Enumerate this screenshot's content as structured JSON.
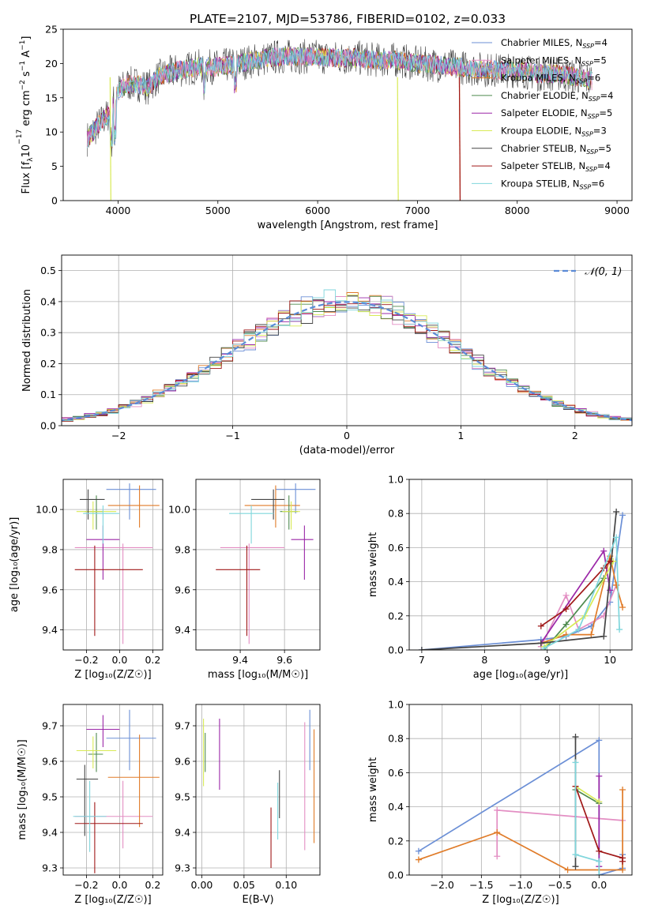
{
  "figure": {
    "title": "PLATE=2107, MJD=53786, FIBERID=0102, z=0.033"
  },
  "colors": {
    "Chabrier MILES": "#6b8fd6",
    "Salpeter MILES": "#e38ec3",
    "Kroupa MILES": "#e07b28",
    "Chabrier ELODIE": "#4e8a4e",
    "Salpeter ELODIE": "#9b27a8",
    "Kroupa ELODIE": "#d8ea55",
    "Chabrier STELIB": "#444444",
    "Salpeter STELIB": "#a01818",
    "Kroupa STELIB": "#7fd6dc"
  },
  "chart_data": [
    {
      "id": "spectrum",
      "type": "line",
      "xlabel": "wavelength [Angstrom, rest frame]",
      "ylabel_main": "Flux [f",
      "ylabel_sub": "λ",
      "ylabel_rest": "10",
      "ylabel_exp": "−17",
      "ylabel_tail": " erg cm",
      "ylabel_exp2": "−2",
      "ylabel_s": " s",
      "ylabel_exp3": "−1",
      "ylabel_A": " A",
      "ylabel_exp4": "−1",
      "ylabel_end": "]",
      "xlim": [
        3450,
        9150
      ],
      "ylim": [
        0,
        25
      ],
      "xticks": [
        "4000",
        "5000",
        "6000",
        "7000",
        "8000",
        "9000"
      ],
      "yticks": [
        "0",
        "5",
        "10",
        "15",
        "20",
        "25"
      ],
      "legend_placement": "top-right",
      "legend": [
        {
          "name": "Chabrier MILES",
          "n": "4"
        },
        {
          "name": "Salpeter MILES",
          "n": "5"
        },
        {
          "name": "Kroupa MILES",
          "n": "6"
        },
        {
          "name": "Chabrier ELODIE",
          "n": "4"
        },
        {
          "name": "Salpeter ELODIE",
          "n": "5"
        },
        {
          "name": "Kroupa ELODIE",
          "n": "3"
        },
        {
          "name": "Chabrier STELIB",
          "n": "5"
        },
        {
          "name": "Salpeter STELIB",
          "n": "4"
        },
        {
          "name": "Kroupa STELIB",
          "n": "6"
        }
      ],
      "legend_nlabel": "N",
      "legend_nsub": "SSP",
      "legend_eq": "=",
      "continuum": {
        "x": [
          3690,
          3800,
          3900,
          4000,
          4100,
          4200,
          4300,
          4400,
          4600,
          4800,
          5000,
          5200,
          5400,
          5600,
          5800,
          6000,
          6200,
          6400,
          6600,
          6800,
          7000,
          7200,
          7400,
          7600,
          7800,
          8000,
          8200,
          8400,
          8600,
          8750
        ],
        "y": [
          9,
          11,
          12.5,
          16,
          17,
          17,
          16.5,
          18,
          19,
          19.5,
          19.5,
          20,
          20.5,
          21,
          21,
          21,
          20.8,
          20.8,
          20.5,
          20.5,
          20,
          19.8,
          19.5,
          19.2,
          19,
          19,
          18.5,
          18.5,
          18,
          17.5
        ]
      },
      "dips": [
        {
          "series": "Kroupa ELODIE",
          "x": 3920,
          "y": 0
        },
        {
          "series": "Kroupa ELODIE",
          "x": 6800,
          "y": 0
        },
        {
          "series": "Kroupa MILES",
          "x": 7420,
          "y": 0
        },
        {
          "series": "Salpeter STELIB",
          "x": 7420,
          "y": 0
        }
      ]
    },
    {
      "id": "residuals",
      "type": "histogram",
      "xlabel": "(data-model)/error",
      "ylabel": "Normed distribution",
      "xlim": [
        -2.5,
        2.5
      ],
      "ylim": [
        0,
        0.55
      ],
      "xticks": [
        "−2",
        "−1",
        "0",
        "1",
        "2"
      ],
      "yticks": [
        "0.0",
        "0.1",
        "0.2",
        "0.3",
        "0.4",
        "0.5"
      ],
      "grid": true,
      "legend_placement": "top-right",
      "gaussian_label": "𝒩(0, 1)",
      "bin_width": 0.1
    },
    {
      "id": "age_vs_Z",
      "type": "errorbar",
      "xlabel": "Z [log₁₀(Z/Z☉)]",
      "ylabel": "age  [log₁₀(age/yr)]",
      "xlim": [
        -0.34,
        0.26
      ],
      "ylim": [
        9.3,
        10.15
      ],
      "xticks": [
        "−0.2",
        "0.0",
        "0.2"
      ],
      "yticks": [
        "9.4",
        "9.6",
        "9.8",
        "10.0"
      ],
      "grid": true,
      "points": [
        {
          "series": "Chabrier MILES",
          "x": 0.06,
          "y": 10.1,
          "xerr": [
            0.14,
            0.16
          ],
          "yerr": [
            0.15,
            0.03
          ]
        },
        {
          "series": "Salpeter MILES",
          "x": 0.02,
          "y": 9.81,
          "xerr": [
            0.29,
            0.18
          ],
          "yerr": [
            0.48,
            0.02
          ]
        },
        {
          "series": "Kroupa MILES",
          "x": 0.12,
          "y": 10.02,
          "xerr": [
            0.19,
            0.12
          ],
          "yerr": [
            0.11,
            0.1
          ]
        },
        {
          "series": "Chabrier ELODIE",
          "x": -0.14,
          "y": 9.99,
          "xerr": [
            0.07,
            0.04
          ],
          "yerr": [
            0.09,
            0.08
          ]
        },
        {
          "series": "Salpeter ELODIE",
          "x": -0.1,
          "y": 9.85,
          "xerr": [
            0.1,
            0.1
          ],
          "yerr": [
            0.2,
            0.07
          ]
        },
        {
          "series": "Kroupa ELODIE",
          "x": -0.16,
          "y": 9.99,
          "xerr": [
            0.1,
            0.14
          ],
          "yerr": [
            0.09,
            0.05
          ]
        },
        {
          "series": "Chabrier STELIB",
          "x": -0.19,
          "y": 10.05,
          "xerr": [
            0.05,
            0.1
          ],
          "yerr": [
            0.1,
            0.05
          ]
        },
        {
          "series": "Salpeter STELIB",
          "x": -0.15,
          "y": 9.7,
          "xerr": [
            0.12,
            0.29
          ],
          "yerr": [
            0.33,
            0.12
          ]
        },
        {
          "series": "Kroupa STELIB",
          "x": -0.1,
          "y": 9.98,
          "xerr": [
            0.12,
            0.1
          ],
          "yerr": [
            0.15,
            0.04
          ]
        }
      ]
    },
    {
      "id": "age_vs_mass",
      "type": "errorbar",
      "xlabel": "mass [log₁₀(M/M☉)]",
      "ylabel": "",
      "xlim": [
        9.2,
        9.76
      ],
      "ylim": [
        9.3,
        10.15
      ],
      "xticks": [
        "9.4",
        "9.6"
      ],
      "yticks": [
        "9.4",
        "9.6",
        "9.8",
        "10.0"
      ],
      "grid": true,
      "points": [
        {
          "series": "Chabrier MILES",
          "x": 9.65,
          "y": 10.1,
          "xerr": [
            0.09,
            0.09
          ],
          "yerr": [
            0.12,
            0.03
          ]
        },
        {
          "series": "Salpeter MILES",
          "x": 9.44,
          "y": 9.81,
          "xerr": [
            0.13,
            0.16
          ],
          "yerr": [
            0.48,
            0.02
          ]
        },
        {
          "series": "Kroupa MILES",
          "x": 9.56,
          "y": 10.02,
          "xerr": [
            0.14,
            0.11
          ],
          "yerr": [
            0.11,
            0.1
          ]
        },
        {
          "series": "Chabrier ELODIE",
          "x": 9.62,
          "y": 9.99,
          "xerr": [
            0.04,
            0.04
          ],
          "yerr": [
            0.09,
            0.08
          ]
        },
        {
          "series": "Salpeter ELODIE",
          "x": 9.69,
          "y": 9.85,
          "xerr": [
            0.06,
            0.04
          ],
          "yerr": [
            0.2,
            0.07
          ]
        },
        {
          "series": "Kroupa ELODIE",
          "x": 9.63,
          "y": 9.99,
          "xerr": [
            0.04,
            0.04
          ],
          "yerr": [
            0.09,
            0.05
          ]
        },
        {
          "series": "Chabrier STELIB",
          "x": 9.55,
          "y": 10.05,
          "xerr": [
            0.1,
            0.05
          ],
          "yerr": [
            0.1,
            0.05
          ]
        },
        {
          "series": "Salpeter STELIB",
          "x": 9.43,
          "y": 9.7,
          "xerr": [
            0.14,
            0.06
          ],
          "yerr": [
            0.33,
            0.12
          ]
        },
        {
          "series": "Kroupa STELIB",
          "x": 9.45,
          "y": 9.98,
          "xerr": [
            0.1,
            0.1
          ],
          "yerr": [
            0.15,
            0.04
          ]
        }
      ]
    },
    {
      "id": "mass_vs_Z",
      "type": "errorbar",
      "xlabel": "Z [log₁₀(Z/Z☉)]",
      "ylabel": "mass [log₁₀(M/M☉)]",
      "xlim": [
        -0.34,
        0.26
      ],
      "ylim": [
        9.28,
        9.76
      ],
      "xticks": [
        "−0.2",
        "0.0",
        "0.2"
      ],
      "yticks": [
        "9.3",
        "9.4",
        "9.5",
        "9.6",
        "9.7"
      ],
      "grid": true,
      "points": [
        {
          "series": "Chabrier MILES",
          "x": 0.06,
          "y": 9.665,
          "xerr": [
            0.14,
            0.16
          ],
          "yerr": [
            0.09,
            0.08
          ]
        },
        {
          "series": "Salpeter MILES",
          "x": 0.02,
          "y": 9.445,
          "xerr": [
            0.29,
            0.18
          ],
          "yerr": [
            0.09,
            0.1
          ]
        },
        {
          "series": "Kroupa MILES",
          "x": 0.12,
          "y": 9.555,
          "xerr": [
            0.19,
            0.12
          ],
          "yerr": [
            0.14,
            0.12
          ]
        },
        {
          "series": "Chabrier ELODIE",
          "x": -0.14,
          "y": 9.62,
          "xerr": [
            0.05,
            0.04
          ],
          "yerr": [
            0.05,
            0.06
          ]
        },
        {
          "series": "Salpeter ELODIE",
          "x": -0.1,
          "y": 9.69,
          "xerr": [
            0.1,
            0.1
          ],
          "yerr": [
            0.05,
            0.04
          ]
        },
        {
          "series": "Kroupa ELODIE",
          "x": -0.16,
          "y": 9.63,
          "xerr": [
            0.1,
            0.14
          ],
          "yerr": [
            0.05,
            0.04
          ]
        },
        {
          "series": "Chabrier STELIB",
          "x": -0.21,
          "y": 9.55,
          "xerr": [
            0.05,
            0.08
          ],
          "yerr": [
            0.16,
            0.04
          ]
        },
        {
          "series": "Salpeter STELIB",
          "x": -0.15,
          "y": 9.425,
          "xerr": [
            0.12,
            0.29
          ],
          "yerr": [
            0.14,
            0.06
          ]
        },
        {
          "series": "Kroupa STELIB",
          "x": -0.18,
          "y": 9.445,
          "xerr": [
            0.1,
            0.1
          ],
          "yerr": [
            0.1,
            0.1
          ]
        }
      ]
    },
    {
      "id": "mass_vs_ebv",
      "type": "errorbar",
      "xlabel": "E(B-V)",
      "ylabel": "",
      "xlim": [
        -0.007,
        0.14
      ],
      "ylim": [
        9.28,
        9.76
      ],
      "xticks": [
        "0.00",
        "0.05",
        "0.10"
      ],
      "yticks": [
        "9.3",
        "9.4",
        "9.5",
        "9.6",
        "9.7"
      ],
      "grid": true,
      "points": [
        {
          "series": "Chabrier MILES",
          "x": 0.128,
          "y": 9.665,
          "xerr": [
            0,
            0
          ],
          "yerr": [
            0.09,
            0.08
          ]
        },
        {
          "series": "Salpeter MILES",
          "x": 0.122,
          "y": 9.53,
          "xerr": [
            0,
            0
          ],
          "yerr": [
            0.18,
            0.18
          ]
        },
        {
          "series": "Kroupa MILES",
          "x": 0.133,
          "y": 9.53,
          "xerr": [
            0,
            0
          ],
          "yerr": [
            0.16,
            0.16
          ]
        },
        {
          "series": "Chabrier ELODIE",
          "x": 0.004,
          "y": 9.62,
          "xerr": [
            0,
            0
          ],
          "yerr": [
            0.05,
            0.06
          ]
        },
        {
          "series": "Salpeter ELODIE",
          "x": 0.021,
          "y": 9.62,
          "xerr": [
            0,
            0
          ],
          "yerr": [
            0.1,
            0.1
          ]
        },
        {
          "series": "Kroupa ELODIE",
          "x": 0.002,
          "y": 9.62,
          "xerr": [
            0,
            0
          ],
          "yerr": [
            0.09,
            0.1
          ]
        },
        {
          "series": "Chabrier STELIB",
          "x": 0.092,
          "y": 9.5,
          "xerr": [
            0,
            0
          ],
          "yerr": [
            0.06,
            0.075
          ]
        },
        {
          "series": "Salpeter STELIB",
          "x": 0.082,
          "y": 9.37,
          "xerr": [
            0,
            0
          ],
          "yerr": [
            0.07,
            0.1
          ]
        },
        {
          "series": "Kroupa STELIB",
          "x": 0.09,
          "y": 9.46,
          "xerr": [
            0,
            0
          ],
          "yerr": [
            0.08,
            0.08
          ]
        }
      ]
    },
    {
      "id": "weight_vs_age",
      "type": "line",
      "xlabel": "age  [log₁₀(age/yr)]",
      "ylabel": "mass weight",
      "xlim": [
        6.8,
        10.35
      ],
      "ylim": [
        0,
        1
      ],
      "xticks": [
        "7",
        "8",
        "9",
        "10"
      ],
      "yticks": [
        "0.0",
        "0.2",
        "0.4",
        "0.6",
        "0.8",
        "1.0"
      ],
      "grid": true,
      "series": [
        {
          "name": "Chabrier MILES",
          "x": [
            7.0,
            8.9,
            9.3,
            9.7,
            10.0,
            10.2
          ],
          "y": [
            0.0,
            0.06,
            0.08,
            0.14,
            0.28,
            0.79
          ]
        },
        {
          "name": "Salpeter MILES",
          "x": [
            8.9,
            9.3,
            9.5,
            9.9,
            10.1
          ],
          "y": [
            0.02,
            0.32,
            0.12,
            0.2,
            0.38
          ]
        },
        {
          "name": "Kroupa MILES",
          "x": [
            8.9,
            9.3,
            9.7,
            10.0,
            10.1,
            10.2
          ],
          "y": [
            0.04,
            0.09,
            0.09,
            0.55,
            0.38,
            0.25
          ]
        },
        {
          "name": "Chabrier ELODIE",
          "x": [
            8.95,
            9.3,
            9.9
          ],
          "y": [
            0.0,
            0.15,
            0.42
          ]
        },
        {
          "name": "Salpeter ELODIE",
          "x": [
            8.9,
            9.9,
            10.0
          ],
          "y": [
            0.04,
            0.58,
            0.35
          ]
        },
        {
          "name": "Kroupa ELODIE",
          "x": [
            8.95,
            9.6,
            10.05
          ],
          "y": [
            0.02,
            0.2,
            0.52
          ]
        },
        {
          "name": "Chabrier STELIB",
          "x": [
            7.0,
            8.9,
            9.9,
            10.1
          ],
          "y": [
            0.0,
            0.04,
            0.08,
            0.81
          ]
        },
        {
          "name": "Salpeter STELIB",
          "x": [
            8.9,
            9.3,
            9.9,
            10.0
          ],
          "y": [
            0.14,
            0.24,
            0.48,
            0.52
          ]
        },
        {
          "name": "Kroupa STELIB",
          "x": [
            8.95,
            9.5,
            10.1,
            10.15
          ],
          "y": [
            0.01,
            0.12,
            0.66,
            0.12
          ]
        }
      ]
    },
    {
      "id": "weight_vs_Z",
      "type": "line",
      "xlabel": "Z [log₁₀(Z/Z☉)]",
      "ylabel": "mass weight",
      "xlim": [
        -2.42,
        0.42
      ],
      "ylim": [
        0,
        1
      ],
      "xticks": [
        "−2.0",
        "−1.5",
        "−1.0",
        "−0.5",
        "0.0"
      ],
      "yticks": [
        "0.0",
        "0.2",
        "0.4",
        "0.6",
        "0.8",
        "1.0"
      ],
      "grid": true,
      "series": [
        {
          "name": "Chabrier MILES",
          "x": [
            -2.3,
            0.0,
            0.0,
            0.3,
            0.3
          ],
          "y": [
            0.14,
            0.79,
            0.0,
            0.04,
            0.12
          ]
        },
        {
          "name": "Salpeter MILES",
          "x": [
            -1.3,
            -1.3,
            0.3
          ],
          "y": [
            0.11,
            0.38,
            0.32
          ]
        },
        {
          "name": "Kroupa MILES",
          "x": [
            -2.3,
            -1.3,
            -0.4,
            0.3,
            0.3
          ],
          "y": [
            0.09,
            0.25,
            0.03,
            0.03,
            0.5
          ]
        },
        {
          "name": "Chabrier ELODIE",
          "x": [
            -0.3,
            0.0
          ],
          "y": [
            0.5,
            0.42
          ]
        },
        {
          "name": "Salpeter ELODIE",
          "x": [
            0.0,
            0.0
          ],
          "y": [
            0.05,
            0.58
          ]
        },
        {
          "name": "Kroupa ELODIE",
          "x": [
            -0.3,
            0.0
          ],
          "y": [
            0.52,
            0.43
          ]
        },
        {
          "name": "Chabrier STELIB",
          "x": [
            -0.3,
            -0.3
          ],
          "y": [
            0.05,
            0.81
          ]
        },
        {
          "name": "Salpeter STELIB",
          "x": [
            -0.3,
            0.0,
            0.3,
            0.3
          ],
          "y": [
            0.52,
            0.14,
            0.1,
            0.08
          ]
        },
        {
          "name": "Kroupa STELIB",
          "x": [
            -0.3,
            -0.3,
            0.0,
            0.0
          ],
          "y": [
            0.66,
            0.12,
            0.08,
            0.0
          ]
        }
      ]
    }
  ]
}
